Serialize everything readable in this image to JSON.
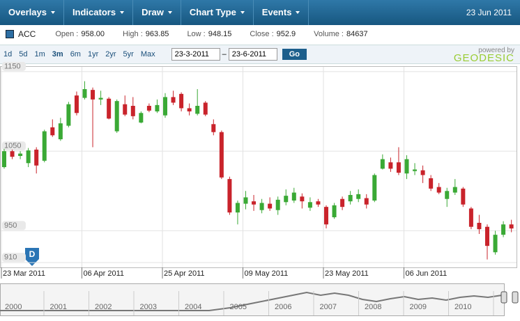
{
  "toolbar": {
    "menus": [
      "Overlays",
      "Indicators",
      "Draw",
      "Chart Type",
      "Events"
    ],
    "date": "23 Jun 2011"
  },
  "quote": {
    "symbol": "ACC",
    "fields": [
      {
        "label": "Open :",
        "value": "958.00"
      },
      {
        "label": "High :",
        "value": "963.85"
      },
      {
        "label": "Low :",
        "value": "948.15"
      },
      {
        "label": "Close :",
        "value": "952.9"
      },
      {
        "label": "Volume :",
        "value": "84637"
      }
    ]
  },
  "ranges": [
    "1d",
    "5d",
    "1m",
    "3m",
    "6m",
    "1yr",
    "2yr",
    "5yr",
    "Max"
  ],
  "date_from": "23-3-2011",
  "date_separator": "–",
  "date_to": "23-6-2011",
  "go": "Go",
  "branding": {
    "powered": "powered by",
    "name": "GEODESIC"
  },
  "event_marker": "D",
  "chart_data": {
    "type": "candlestick",
    "categories": [
      "23 Mar 2011",
      null,
      null,
      null,
      null,
      null,
      null,
      null,
      null,
      null,
      "06 Apr 2011",
      null,
      null,
      null,
      null,
      null,
      null,
      null,
      null,
      null,
      "25 Apr 2011",
      null,
      null,
      null,
      null,
      null,
      null,
      null,
      null,
      null,
      "09 May 2011",
      null,
      null,
      null,
      null,
      null,
      null,
      null,
      null,
      null,
      "23 May 2011",
      null,
      null,
      null,
      null,
      null,
      null,
      null,
      null,
      null,
      "06 Jun 2011",
      null,
      null,
      null,
      null,
      null,
      null,
      null,
      null,
      null,
      null,
      null,
      null,
      null
    ],
    "open": [
      1030,
      1050,
      1044,
      1035,
      1052,
      1038,
      1080,
      1065,
      1082,
      1120,
      1117,
      1127,
      1115,
      1116,
      1075,
      1109,
      1107,
      1086,
      1107,
      1100,
      1095,
      1118,
      1122,
      1104,
      1097,
      1111,
      1084,
      1074,
      1015,
      973,
      984,
      987,
      976,
      984,
      976,
      986,
      988,
      993,
      979,
      987,
      980,
      967,
      990,
      987,
      990,
      991,
      988,
      1028,
      1036,
      1036,
      1022,
      1025,
      1026,
      1016,
      1005,
      990,
      998,
      1003,
      978,
      960,
      955,
      923,
      945,
      958
    ],
    "high": [
      1053,
      1052,
      1050,
      1054,
      1055,
      1077,
      1090,
      1092,
      1112,
      1125,
      1138,
      1130,
      1126,
      1118,
      1115,
      1120,
      1118,
      1100,
      1110,
      1115,
      1123,
      1126,
      1124,
      1110,
      1128,
      1113,
      1090,
      1076,
      1018,
      988,
      1000,
      995,
      990,
      992,
      993,
      1002,
      1004,
      997,
      992,
      990,
      982,
      985,
      993,
      1000,
      1002,
      996,
      1022,
      1046,
      1042,
      1055,
      1045,
      1035,
      1032,
      1020,
      1010,
      1004,
      1015,
      1005,
      980,
      970,
      958,
      950,
      962,
      963.85
    ],
    "low": [
      1028,
      1040,
      1040,
      1030,
      1022,
      1036,
      1068,
      1063,
      1080,
      1095,
      1115,
      1055,
      1108,
      1090,
      1073,
      1094,
      1090,
      1085,
      1099,
      1098,
      1092,
      1108,
      1100,
      1095,
      1095,
      1094,
      1070,
      1015,
      970,
      958,
      977,
      975,
      972,
      975,
      970,
      982,
      985,
      978,
      975,
      980,
      953,
      965,
      976,
      983,
      986,
      978,
      986,
      1027,
      1024,
      1020,
      1015,
      1020,
      1010,
      1000,
      996,
      980,
      995,
      980,
      952,
      946,
      914,
      920,
      942,
      948.15
    ],
    "close": [
      1050,
      1043,
      1047,
      1051,
      1032,
      1075,
      1070,
      1085,
      1109,
      1098,
      1128,
      1115,
      1117,
      1091,
      1113,
      1096,
      1094,
      1098,
      1101,
      1108,
      1118,
      1111,
      1104,
      1100,
      1107,
      1096,
      1074,
      1017,
      973,
      985,
      992,
      983,
      985,
      978,
      989,
      994,
      998,
      987,
      986,
      983,
      958,
      982,
      980,
      995,
      996,
      983,
      1020,
      1040,
      1028,
      1023,
      1040,
      1027,
      1020,
      1003,
      998,
      1000,
      1005,
      983,
      955,
      952,
      931,
      945,
      958,
      952.9
    ],
    "up_color": "#3aa935",
    "down_color": "#c9232b",
    "ylim": [
      904,
      1156
    ],
    "yticks": [
      910,
      950,
      1050,
      1150
    ],
    "grid": true
  },
  "navigator": {
    "years": [
      "2000",
      "2001",
      "2002",
      "2003",
      "2004",
      "2005",
      "2006",
      "2007",
      "2008",
      "2009",
      "2010"
    ]
  }
}
